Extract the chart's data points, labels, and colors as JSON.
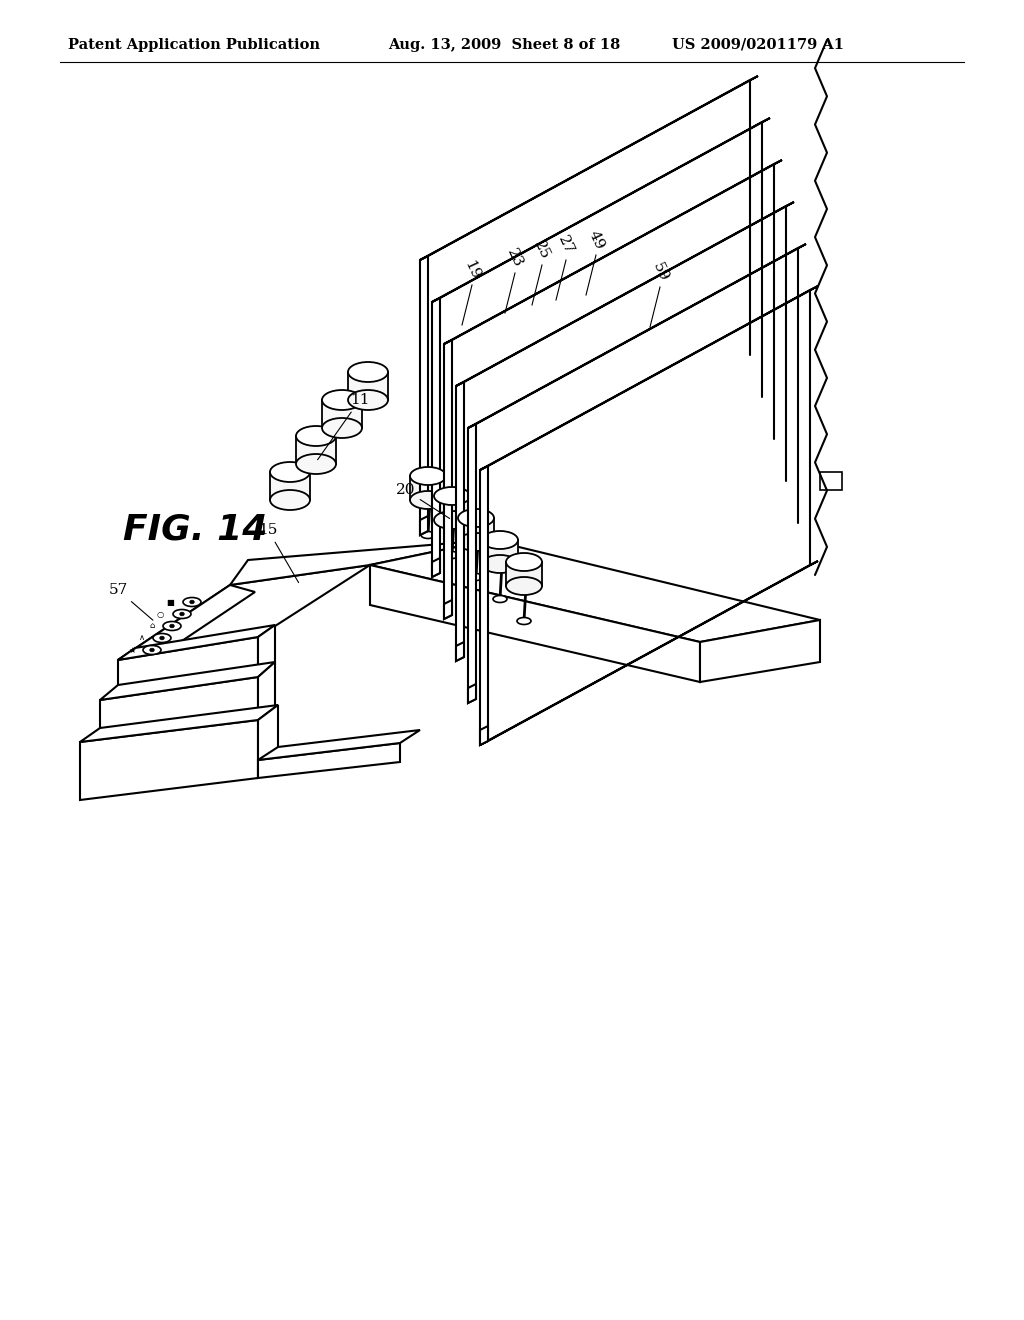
{
  "background_color": "#ffffff",
  "header_left": "Patent Application Publication",
  "header_center": "Aug. 13, 2009  Sheet 8 of 18",
  "header_right": "US 2009/0201179 A1",
  "fig_label": "FIG. 14",
  "line_color": "#000000",
  "face_color": "#ffffff",
  "lw": 1.5
}
